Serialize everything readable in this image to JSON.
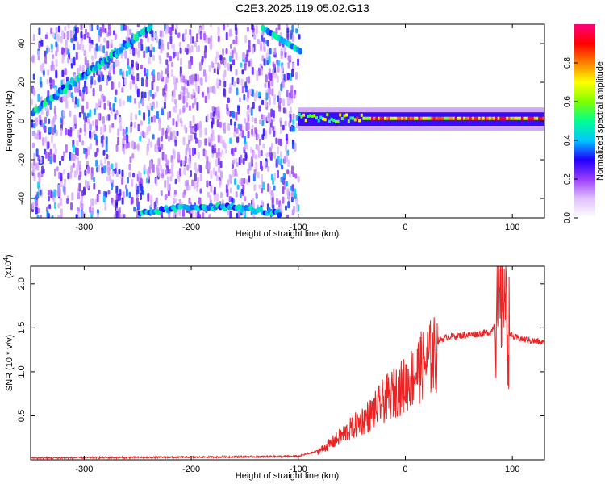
{
  "title": "C2E3.2025.119.05.02.G13",
  "chart_data": [
    {
      "type": "heatmap",
      "xlabel": "Height of straight line (km)",
      "ylabel": "Frequency (Hz)",
      "xlim": [
        -350,
        130
      ],
      "ylim": [
        -50,
        50
      ],
      "x_ticks": [
        -300,
        -200,
        -100,
        0,
        100
      ],
      "y_ticks": [
        -40,
        -20,
        0,
        20,
        40
      ],
      "colorbar": {
        "label": "Normalized spectral amplitude",
        "range": [
          0,
          1
        ],
        "ticks": [
          "0.0",
          "0.2",
          "0.4",
          "0.6",
          "0.8"
        ],
        "colors": [
          "#ffffff",
          "#e0c0ff",
          "#9a3cff",
          "#2000ff",
          "#00c8ff",
          "#00ff90",
          "#80ff00",
          "#ffff00",
          "#ff8000",
          "#ff0000",
          "#ff0080"
        ]
      },
      "features": {
        "noise_region_x": [
          -350,
          -100
        ],
        "carrier_line": {
          "x": [
            -100,
            130
          ],
          "freq": 1,
          "amplitude": 0.9
        },
        "descending_branch": {
          "x": [
            -350,
            -240
          ],
          "freq_at_start": 5,
          "freq_at_end": 48
        },
        "lower_arc": {
          "x": [
            -250,
            -120
          ],
          "freq": -44
        },
        "upper_corner": {
          "x": [
            -135,
            -100
          ],
          "freq": [
            48,
            36
          ]
        }
      }
    },
    {
      "type": "line",
      "xlabel": "Height of straight line (km)",
      "ylabel": "SNR (10 * v/v)",
      "y_multiplier": "(x10",
      "y_multiplier_exp": "4",
      "y_multiplier_close": ")",
      "xlim": [
        -350,
        130
      ],
      "ylim": [
        0,
        2.2
      ],
      "x_ticks": [
        -300,
        -200,
        -100,
        0,
        100
      ],
      "y_ticks": [
        "0.5",
        "1.0",
        "1.5",
        "2.0"
      ],
      "color": "#ee2222",
      "series": [
        {
          "x": [
            -350,
            -200,
            -100,
            -82,
            -70,
            -60,
            -50,
            -40,
            -30,
            -20,
            -10,
            0,
            10,
            20,
            30,
            40,
            60,
            80,
            85,
            90,
            92,
            95,
            100,
            110,
            120,
            130
          ],
          "values": [
            0.02,
            0.03,
            0.04,
            0.1,
            0.2,
            0.3,
            0.4,
            0.5,
            0.6,
            0.75,
            0.85,
            0.95,
            1.1,
            1.25,
            1.35,
            1.4,
            1.42,
            1.45,
            1.6,
            1.8,
            2.1,
            1.5,
            1.4,
            1.37,
            1.35,
            1.33
          ]
        }
      ]
    }
  ]
}
